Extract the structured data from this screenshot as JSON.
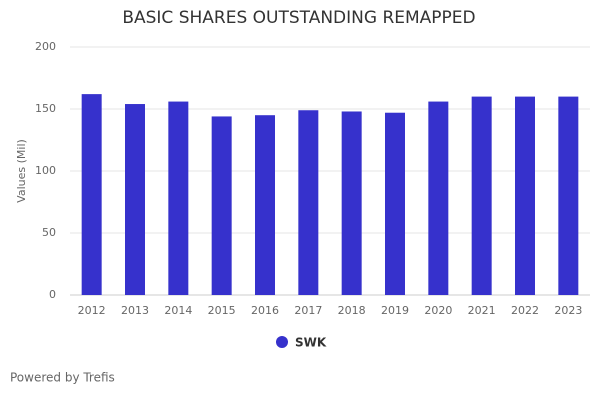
{
  "chart_data": {
    "type": "bar",
    "title": "BASIC SHARES OUTSTANDING REMAPPED",
    "y_label": "Values (Mil)",
    "categories": [
      "2012",
      "2013",
      "2014",
      "2015",
      "2016",
      "2017",
      "2018",
      "2019",
      "2020",
      "2021",
      "2022",
      "2023"
    ],
    "series": [
      {
        "name": "SWK",
        "color": "#3631cc",
        "values": [
          162,
          154,
          156,
          144,
          145,
          149,
          148,
          147,
          156,
          160,
          160,
          160
        ]
      }
    ],
    "ylim": [
      0,
      200
    ],
    "yticks": [
      0,
      50,
      100,
      150,
      200
    ],
    "grid": true,
    "legend": "bottom",
    "footer": "Powered by Trefis"
  }
}
